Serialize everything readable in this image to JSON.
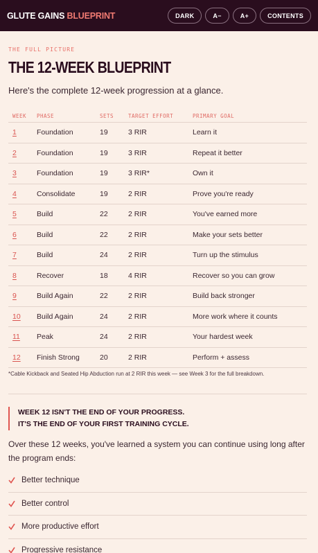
{
  "header": {
    "brand": "GLUTE GAINS",
    "brand_accent": "BLUEPRINT",
    "buttons": [
      "DARK",
      "A−",
      "A+",
      "CONTENTS"
    ]
  },
  "section": {
    "eyebrow": "THE FULL PICTURE",
    "title": "THE 12-WEEK BLUEPRINT",
    "intro": "Here's the complete 12-week progression at a glance."
  },
  "table": {
    "columns": [
      "WEEK",
      "PHASE",
      "SETS",
      "TARGET EFFORT",
      "PRIMARY GOAL"
    ],
    "rows": [
      [
        1,
        "Foundation",
        19,
        "3 RIR",
        "Learn it"
      ],
      [
        2,
        "Foundation",
        19,
        "3 RIR",
        "Repeat it better"
      ],
      [
        3,
        "Foundation",
        19,
        "3 RIR*",
        "Own it"
      ],
      [
        4,
        "Consolidate",
        19,
        "2 RIR",
        "Prove you're ready"
      ],
      [
        5,
        "Build",
        22,
        "2 RIR",
        "You've earned more"
      ],
      [
        6,
        "Build",
        22,
        "2 RIR",
        "Make your sets better"
      ],
      [
        7,
        "Build",
        24,
        "2 RIR",
        "Turn up the stimulus"
      ],
      [
        8,
        "Recover",
        18,
        "4 RIR",
        "Recover so you can grow"
      ],
      [
        9,
        "Build Again",
        22,
        "2 RIR",
        "Build back stronger"
      ],
      [
        10,
        "Build Again",
        24,
        "2 RIR",
        "More work where it counts"
      ],
      [
        11,
        "Peak",
        24,
        "2 RIR",
        "Your hardest week"
      ],
      [
        12,
        "Finish Strong",
        20,
        "2 RIR",
        "Perform + assess"
      ]
    ],
    "footnote": "*Cable Kickback and Seated Hip Abduction run at 2 RIR this week — see Week 3 for the full breakdown."
  },
  "callout": {
    "lines": [
      "WEEK 12 ISN'T THE END OF YOUR PROGRESS.",
      "IT'S THE END OF YOUR FIRST TRAINING CYCLE."
    ]
  },
  "body": "Over these 12 weeks, you've learned a system you can continue using long after the program ends:",
  "checklist": [
    "Better technique",
    "Better control",
    "More productive effort",
    "Progressive resistance"
  ]
}
